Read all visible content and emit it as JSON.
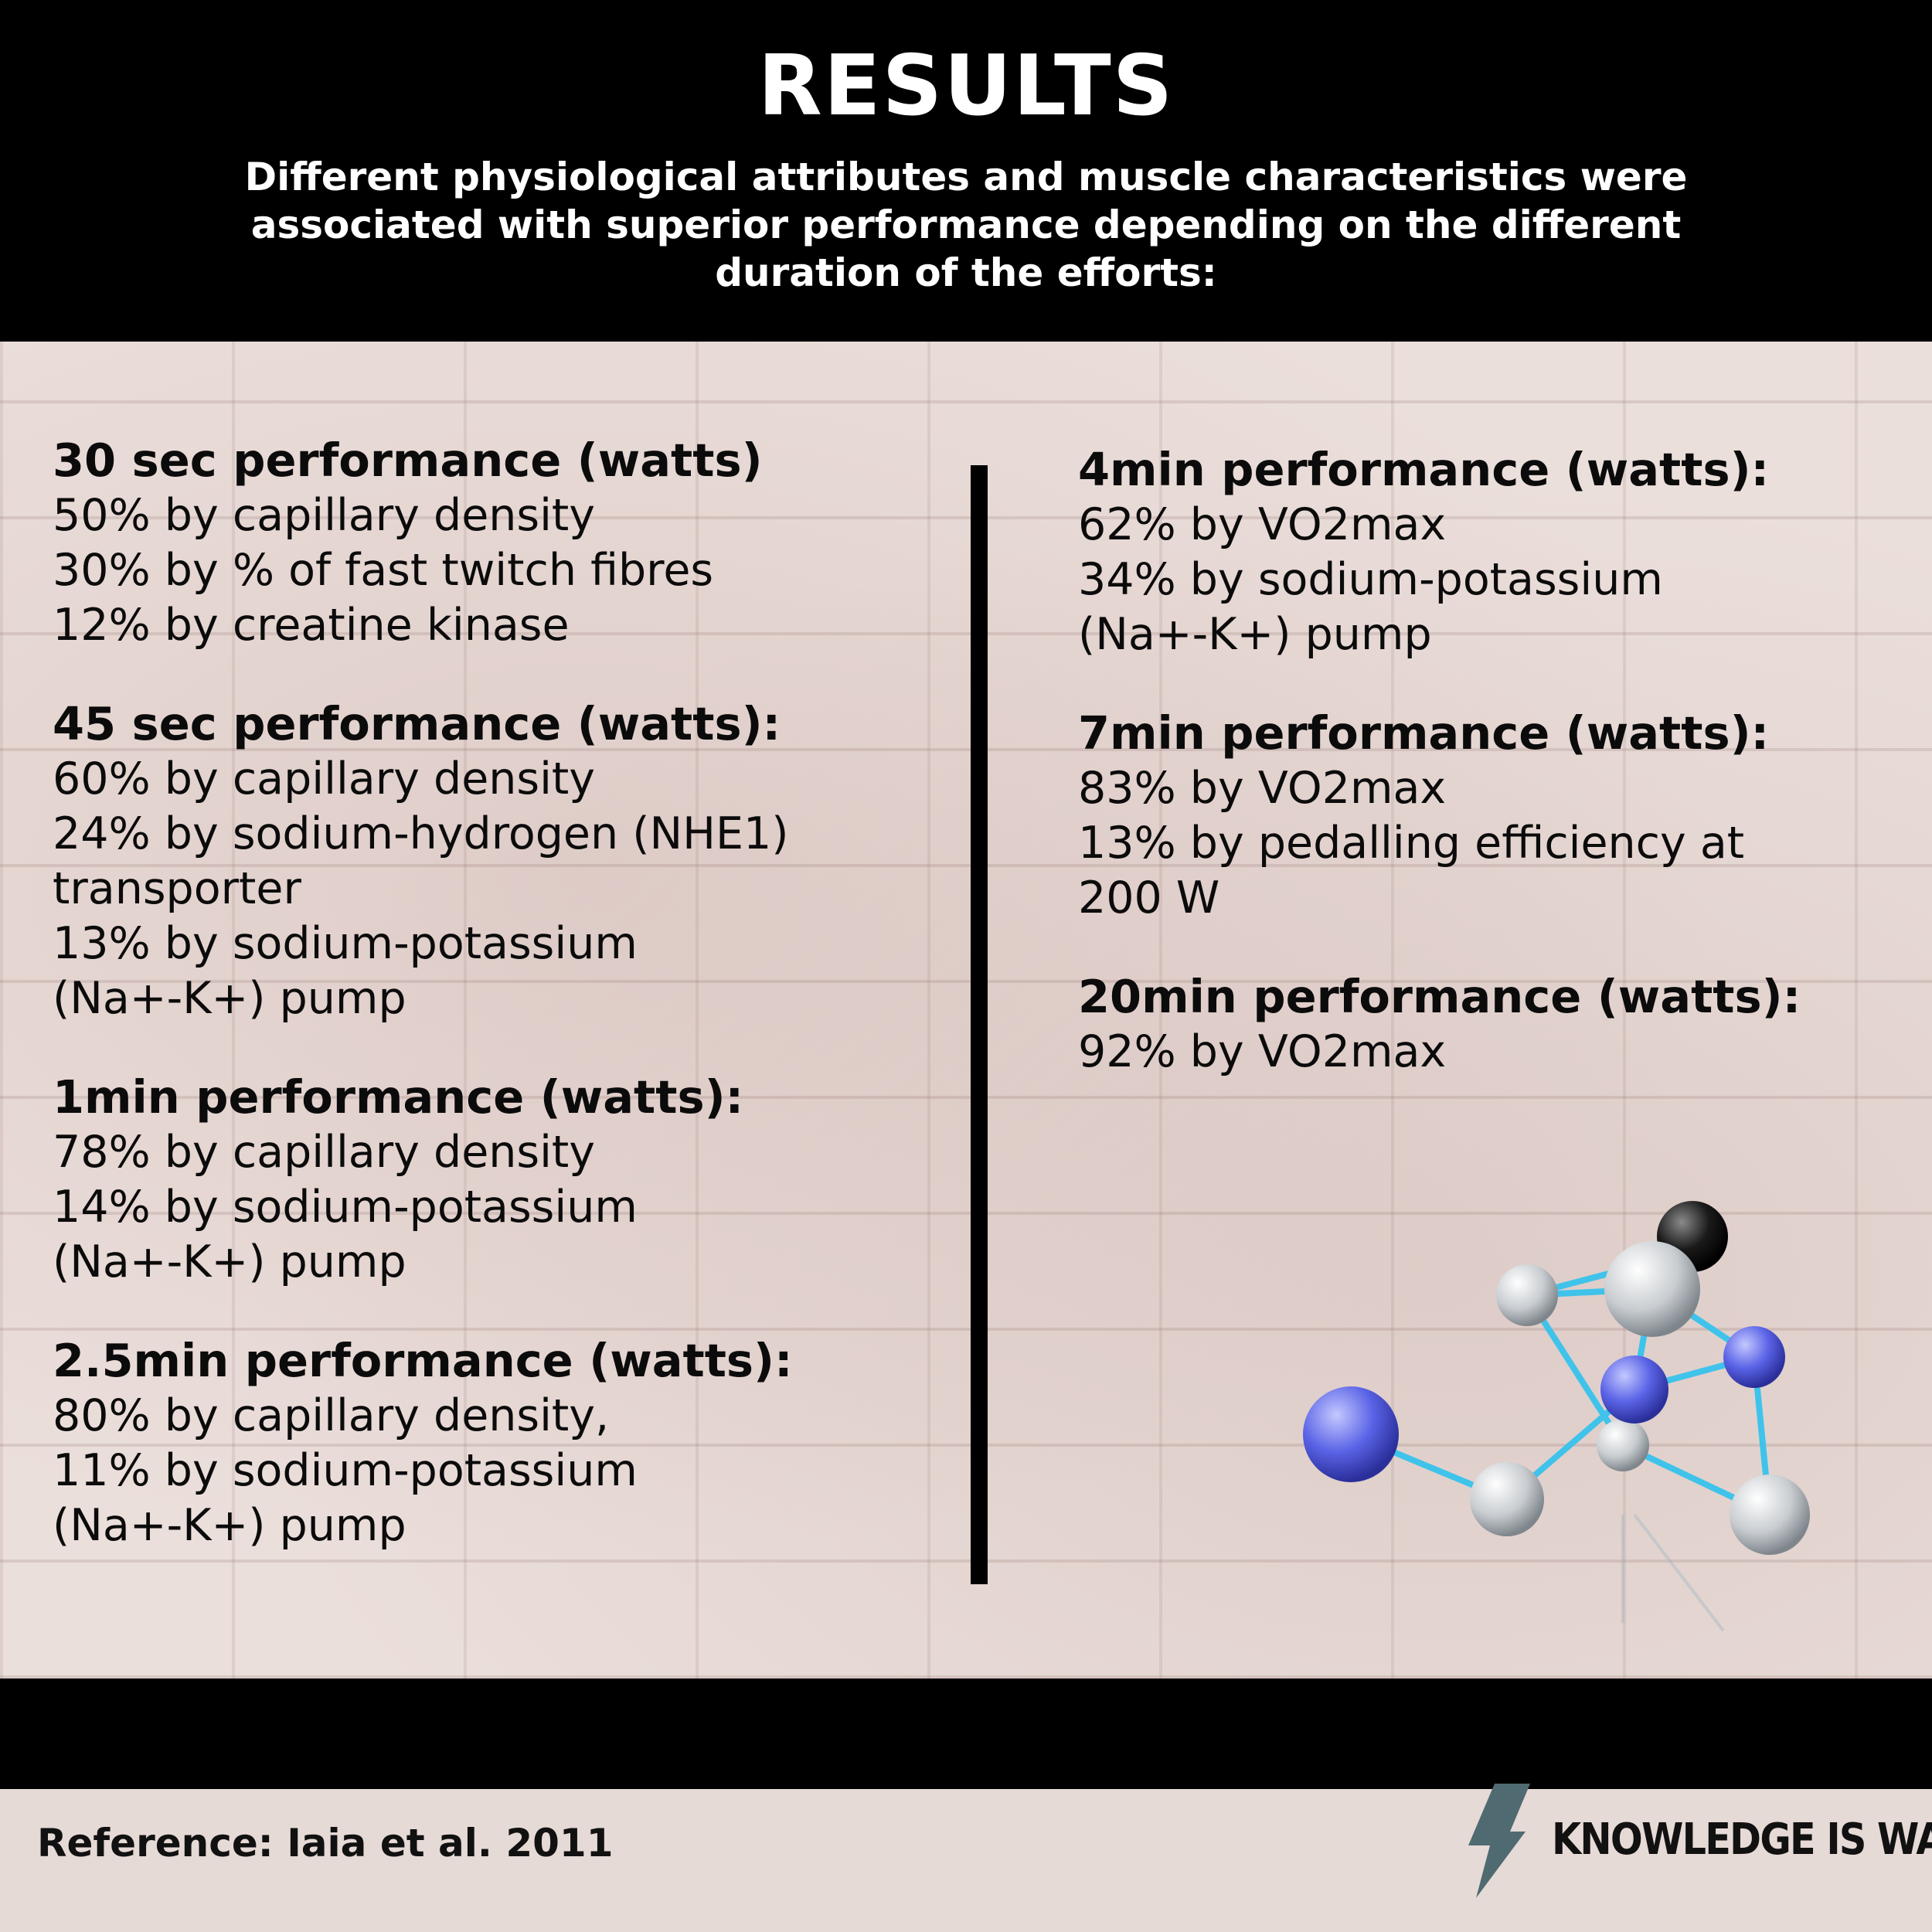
{
  "header": {
    "title": "RESULTS",
    "subtitle": "Different physiological attributes and muscle characteristics were associated with superior performance depending on the different duration of the efforts:"
  },
  "left_column": [
    {
      "title": "30 sec performance (watts)",
      "lines": [
        "50% by capillary density",
        "30% by % of fast twitch fibres",
        "12% by creatine kinase"
      ]
    },
    {
      "title": "45 sec performance (watts):",
      "lines": [
        "60% by capillary density",
        "24% by sodium-hydrogen (NHE1)",
        "transporter",
        "13% by sodium-potassium",
        "(Na+-K+) pump"
      ]
    },
    {
      "title": "1min performance (watts):",
      "lines": [
        "78% by capillary density",
        "14% by sodium-potassium",
        "(Na+-K+) pump"
      ]
    },
    {
      "title": "2.5min performance (watts):",
      "lines": [
        "80% by capillary density,",
        "11% by sodium-potassium",
        "(Na+-K+) pump"
      ]
    }
  ],
  "right_column": [
    {
      "title": "4min performance (watts):",
      "lines": [
        "62% by VO2max",
        "34% by sodium-potassium",
        "(Na+-K+) pump"
      ]
    },
    {
      "title": "7min performance (watts):",
      "lines": [
        "83% by VO2max",
        "13% by pedalling efficiency at",
        "200 W"
      ]
    },
    {
      "title": "20min performance (watts):",
      "lines": [
        "92% by VO2max"
      ]
    }
  ],
  "footer": {
    "reference": "Reference: Iaia et al. 2011",
    "brand": "KNOWLEDGE IS WATT",
    "brand_icon": "lightning-bolt-icon",
    "brand_color": "#4f6a70"
  },
  "illustration": {
    "name": "molecule-illustration",
    "atom_blue": "#5a63e6",
    "atom_white": "#f2f4f6",
    "atom_black": "#1a1a1a",
    "bond": "#3fc3ea"
  }
}
